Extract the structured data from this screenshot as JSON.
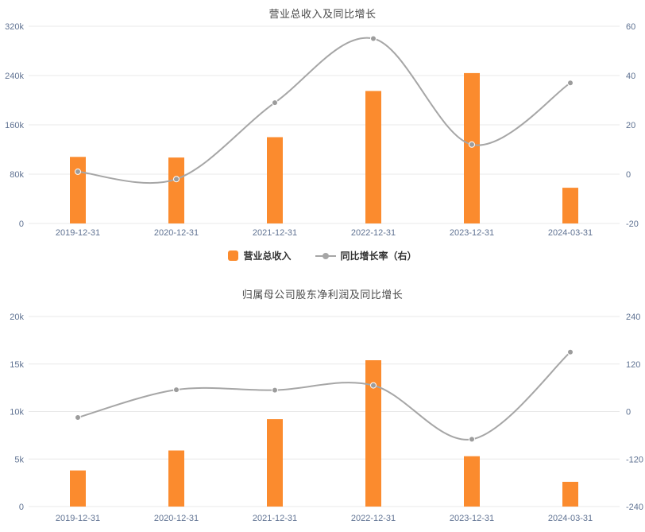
{
  "style": {
    "bar_color": "#fb8b2e",
    "line_color": "#a6a6a6",
    "dot_color": "#9c9c9c",
    "grid_color": "#e8e8e8",
    "axis_label_color": "#5f7292",
    "title_color": "#4a4a4a",
    "legend_text_color": "#333333"
  },
  "chart_data": [
    {
      "type": "bar+line",
      "title": "营业总收入及同比增长",
      "categories": [
        "2019-12-31",
        "2020-12-31",
        "2021-12-31",
        "2022-12-31",
        "2023-12-31",
        "2024-03-31"
      ],
      "series": [
        {
          "type": "bar",
          "name": "营业总收入",
          "axis": "left",
          "values": [
            108000,
            107000,
            140000,
            215000,
            244000,
            58000
          ]
        },
        {
          "type": "line",
          "name": "同比增长率（右）",
          "axis": "right",
          "values": [
            1,
            -2,
            29,
            55,
            12,
            37
          ]
        }
      ],
      "left_axis": {
        "min": 0,
        "max": 320000,
        "ticks": [
          "0",
          "80k",
          "160k",
          "240k",
          "320k"
        ]
      },
      "right_axis": {
        "min": -20,
        "max": 60,
        "ticks": [
          "-20",
          "0",
          "20",
          "40",
          "60"
        ]
      },
      "legend_visible": true,
      "grid": true,
      "legend_position": "bottom"
    },
    {
      "type": "bar+line",
      "title": "归属母公司股东净利润及同比增长",
      "categories": [
        "2019-12-31",
        "2020-12-31",
        "2021-12-31",
        "2022-12-31",
        "2023-12-31",
        "2024-03-31"
      ],
      "series": [
        {
          "type": "bar",
          "axis": "left",
          "values": [
            3800,
            5900,
            9200,
            15400,
            5300,
            2600
          ]
        },
        {
          "type": "line",
          "axis": "right",
          "values": [
            -15,
            55,
            54,
            66,
            -70,
            150
          ]
        }
      ],
      "left_axis": {
        "min": 0,
        "max": 20000,
        "ticks": [
          "0",
          "5k",
          "10k",
          "15k",
          "20k"
        ]
      },
      "right_axis": {
        "min": -240,
        "max": 240,
        "ticks": [
          "-240",
          "-120",
          "0",
          "120",
          "240"
        ]
      },
      "legend_visible": false,
      "grid": true,
      "legend_position": "bottom"
    }
  ]
}
